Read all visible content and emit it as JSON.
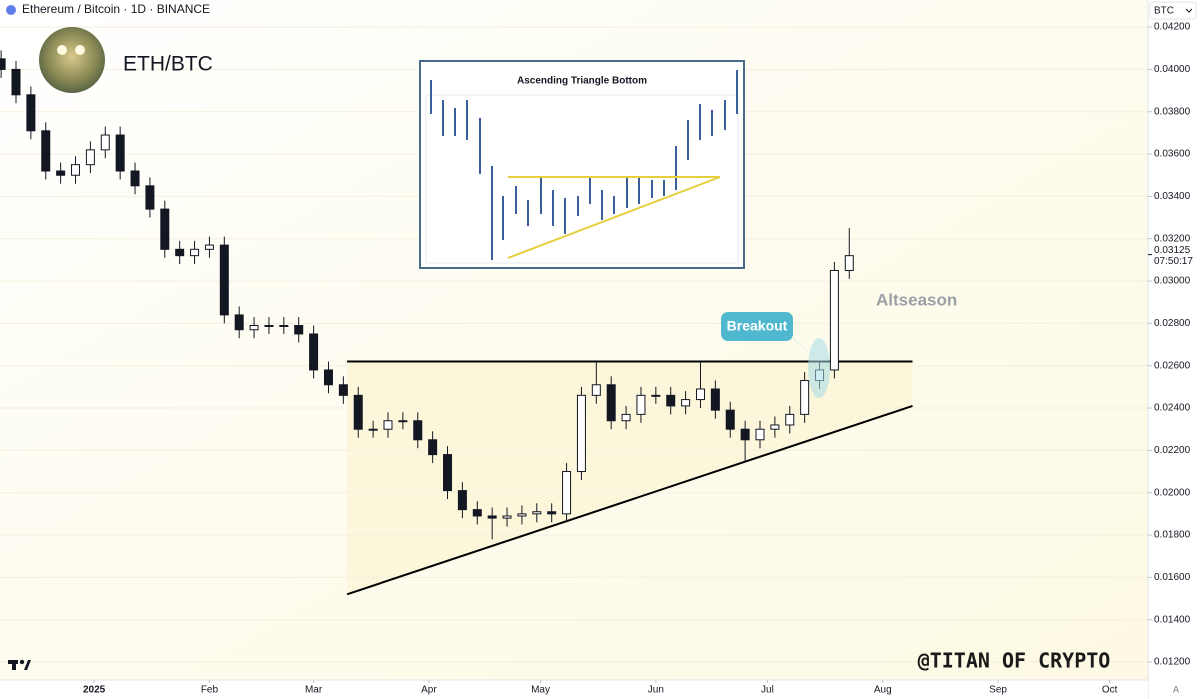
{
  "chart_data": {
    "type": "candlestick",
    "title": "Ethereum / Bitcoin · 1D · BINANCE",
    "subtitle": "ETH/BTC",
    "currency": "BTC",
    "scale_mode": "A",
    "watermark": "@TITAN OF CRYPTO",
    "inset_title": "Ascending Triangle Bottom",
    "annotations": [
      "Breakout",
      "Altseason"
    ],
    "last_price": {
      "value": 0.03125,
      "label": "0.03125"
    },
    "countdown": "07:50:17",
    "x": [
      -25,
      -21,
      -17,
      -13,
      -9,
      -5,
      -1,
      3,
      7,
      11,
      15,
      19,
      23,
      27,
      31,
      35,
      39,
      43,
      47,
      51,
      55,
      59,
      63,
      67,
      71,
      75,
      79,
      83,
      87,
      91,
      95,
      99,
      103,
      107,
      111,
      115,
      119,
      123,
      127,
      131,
      135,
      139,
      143,
      147,
      151,
      155,
      159,
      163,
      167,
      171,
      175,
      179,
      183,
      187,
      191,
      195,
      199,
      203
    ],
    "open": [
      0.0405,
      0.04,
      0.0388,
      0.0371,
      0.0352,
      0.035,
      0.0355,
      0.0362,
      0.0369,
      0.0352,
      0.0345,
      0.0334,
      0.0315,
      0.0312,
      0.0315,
      0.0317,
      0.0284,
      0.0277,
      0.0279,
      0.0279,
      0.0279,
      0.0275,
      0.0258,
      0.0251,
      0.0246,
      0.023,
      0.023,
      0.0234,
      0.0234,
      0.0225,
      0.0218,
      0.0201,
      0.0192,
      0.0189,
      0.0188,
      0.0189,
      0.019,
      0.0191,
      0.019,
      0.021,
      0.0246,
      0.0251,
      0.0234,
      0.0237,
      0.0246,
      0.0246,
      0.0241,
      0.0244,
      0.0249,
      0.0239,
      0.023,
      0.0225,
      0.023,
      0.0232,
      0.0237,
      0.0253,
      0.0258,
      0.0305
    ],
    "high": [
      0.0409,
      0.0404,
      0.0392,
      0.0375,
      0.0356,
      0.0359,
      0.0366,
      0.0373,
      0.0373,
      0.0356,
      0.0349,
      0.0338,
      0.0319,
      0.0319,
      0.0321,
      0.0321,
      0.0288,
      0.0283,
      0.0283,
      0.0283,
      0.0283,
      0.0279,
      0.0262,
      0.0255,
      0.025,
      0.0234,
      0.0238,
      0.0238,
      0.0238,
      0.0229,
      0.0222,
      0.0205,
      0.0196,
      0.0193,
      0.0193,
      0.0194,
      0.0195,
      0.0195,
      0.0214,
      0.025,
      0.0262,
      0.0255,
      0.0241,
      0.025,
      0.025,
      0.025,
      0.0248,
      0.0262,
      0.0253,
      0.0243,
      0.0234,
      0.0234,
      0.0236,
      0.0241,
      0.0257,
      0.0262,
      0.0309,
      0.0325
    ],
    "low": [
      0.0396,
      0.0384,
      0.0367,
      0.0348,
      0.0346,
      0.0346,
      0.0351,
      0.0358,
      0.0348,
      0.0341,
      0.033,
      0.0311,
      0.0308,
      0.0308,
      0.0311,
      0.028,
      0.0273,
      0.0273,
      0.0275,
      0.0275,
      0.0271,
      0.0254,
      0.0247,
      0.0242,
      0.0226,
      0.0226,
      0.0226,
      0.023,
      0.0221,
      0.0214,
      0.0197,
      0.0188,
      0.0185,
      0.0178,
      0.0184,
      0.0185,
      0.0186,
      0.0186,
      0.0186,
      0.0206,
      0.0242,
      0.023,
      0.023,
      0.0233,
      0.0242,
      0.0237,
      0.0237,
      0.024,
      0.0235,
      0.0226,
      0.0215,
      0.0221,
      0.0226,
      0.0228,
      0.0233,
      0.0249,
      0.0254,
      0.0301
    ],
    "close": [
      0.04,
      0.0388,
      0.0371,
      0.0352,
      0.035,
      0.0355,
      0.0362,
      0.0369,
      0.0352,
      0.0345,
      0.0334,
      0.0315,
      0.0312,
      0.0315,
      0.0317,
      0.0284,
      0.0277,
      0.0279,
      0.0279,
      0.0279,
      0.0275,
      0.0258,
      0.0251,
      0.0246,
      0.023,
      0.023,
      0.0234,
      0.0234,
      0.0225,
      0.0218,
      0.0201,
      0.0192,
      0.0189,
      0.0188,
      0.0189,
      0.019,
      0.0191,
      0.019,
      0.021,
      0.0246,
      0.0251,
      0.0234,
      0.0237,
      0.0246,
      0.0246,
      0.0241,
      0.0244,
      0.0249,
      0.0239,
      0.023,
      0.0225,
      0.023,
      0.0232,
      0.0237,
      0.0253,
      0.0258,
      0.0305,
      0.0312
    ],
    "up_color": "#ffffff",
    "down_color": "#131722",
    "trendlines": [
      {
        "x": [
          68,
          220
        ],
        "y": [
          0.0262,
          0.0262
        ]
      },
      {
        "x": [
          68,
          220
        ],
        "y": [
          0.0152,
          0.0241
        ]
      }
    ],
    "xlim": [
      -25.3,
      283.3
    ],
    "xticks": [
      {
        "value": 0,
        "label": "2025"
      },
      {
        "value": 31,
        "label": "Feb"
      },
      {
        "value": 59,
        "label": "Mar"
      },
      {
        "value": 90,
        "label": "Apr"
      },
      {
        "value": 120,
        "label": "May"
      },
      {
        "value": 151,
        "label": "Jun"
      },
      {
        "value": 181,
        "label": "Jul"
      },
      {
        "value": 212,
        "label": "Aug"
      },
      {
        "value": 243,
        "label": "Sep"
      },
      {
        "value": 273,
        "label": "Oct"
      }
    ],
    "ylim": [
      0.01115,
      0.04328
    ],
    "yticks": [
      {
        "value": 0.042,
        "label": "0.04200"
      },
      {
        "value": 0.04,
        "label": "0.04000"
      },
      {
        "value": 0.038,
        "label": "0.03800"
      },
      {
        "value": 0.036,
        "label": "0.03600"
      },
      {
        "value": 0.034,
        "label": "0.03400"
      },
      {
        "value": 0.032,
        "label": "0.03200"
      },
      {
        "value": 0.03,
        "label": "0.03000"
      },
      {
        "value": 0.028,
        "label": "0.02800"
      },
      {
        "value": 0.026,
        "label": "0.02600"
      },
      {
        "value": 0.024,
        "label": "0.02400"
      },
      {
        "value": 0.022,
        "label": "0.02200"
      },
      {
        "value": 0.02,
        "label": "0.02000"
      },
      {
        "value": 0.018,
        "label": "0.01800"
      },
      {
        "value": 0.016,
        "label": "0.01600"
      },
      {
        "value": 0.014,
        "label": "0.01400"
      },
      {
        "value": 0.012,
        "label": "0.01200"
      }
    ]
  }
}
